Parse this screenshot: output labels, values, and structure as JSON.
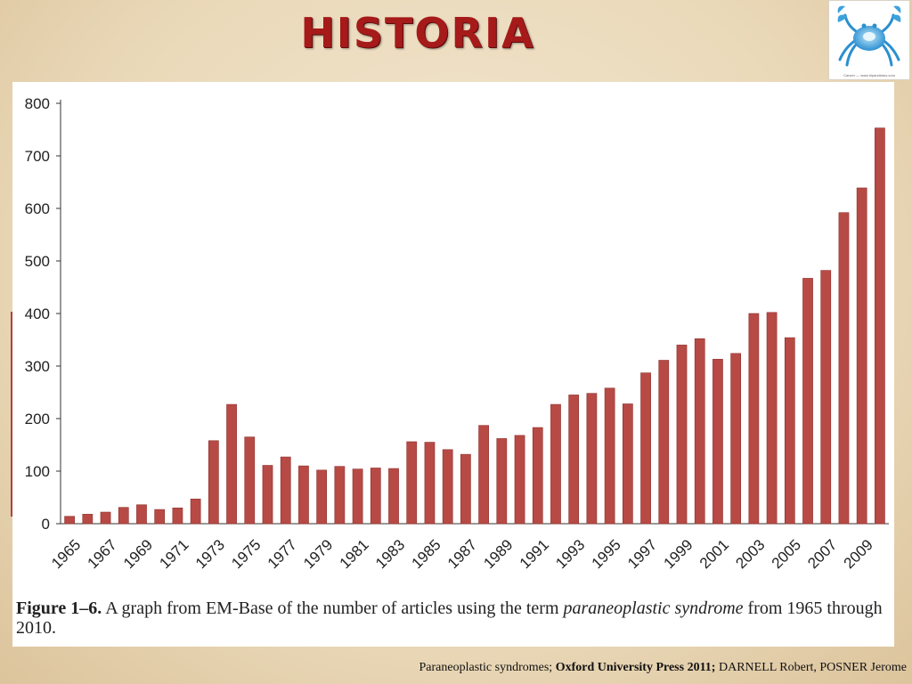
{
  "slide": {
    "title": "HISTORIA",
    "logo_icon": "crab-icon",
    "logo_caption": "Cancer — www.hipandlotus.com",
    "accent_color": "#b84a45"
  },
  "caption": {
    "label": "Figure 1–6.",
    "text_before": " A graph from EM-Base of the number of articles using the term ",
    "term": "paraneoplastic syndrome",
    "text_after": " from 1965 through 2010."
  },
  "source": {
    "prefix": "Paraneoplastic syndromes; ",
    "publisher": "Oxford University Press 2011;",
    "authors": " DARNELL Robert, POSNER Jerome"
  },
  "chart_data": {
    "type": "bar",
    "title": "",
    "xlabel": "",
    "ylabel": "",
    "ylim": [
      0,
      800
    ],
    "yticks": [
      0,
      100,
      200,
      300,
      400,
      500,
      600,
      700,
      800
    ],
    "grid": false,
    "legend": "none",
    "bar_color": "#b84a45",
    "categories": [
      "1965",
      "1966",
      "1967",
      "1968",
      "1969",
      "1970",
      "1971",
      "1972",
      "1973",
      "1974",
      "1975",
      "1976",
      "1977",
      "1978",
      "1979",
      "1980",
      "1981",
      "1982",
      "1983",
      "1984",
      "1985",
      "1986",
      "1987",
      "1988",
      "1989",
      "1990",
      "1991",
      "1992",
      "1993",
      "1994",
      "1995",
      "1996",
      "1997",
      "1998",
      "1999",
      "2000",
      "2001",
      "2002",
      "2003",
      "2004",
      "2005",
      "2006",
      "2007",
      "2008",
      "2009",
      "2010"
    ],
    "tick_labels": [
      "1965",
      "1967",
      "1969",
      "1971",
      "1973",
      "1975",
      "1977",
      "1979",
      "1981",
      "1983",
      "1985",
      "1987",
      "1989",
      "1991",
      "1993",
      "1995",
      "1997",
      "1999",
      "2001",
      "2003",
      "2005",
      "2007",
      "2009"
    ],
    "values": [
      14,
      18,
      22,
      31,
      36,
      27,
      30,
      47,
      158,
      227,
      165,
      111,
      127,
      110,
      102,
      109,
      104,
      106,
      105,
      156,
      155,
      141,
      132,
      187,
      162,
      168,
      183,
      227,
      245,
      248,
      258,
      228,
      287,
      311,
      340,
      352,
      313,
      324,
      400,
      402,
      354,
      467,
      482,
      592,
      639,
      753
    ]
  }
}
